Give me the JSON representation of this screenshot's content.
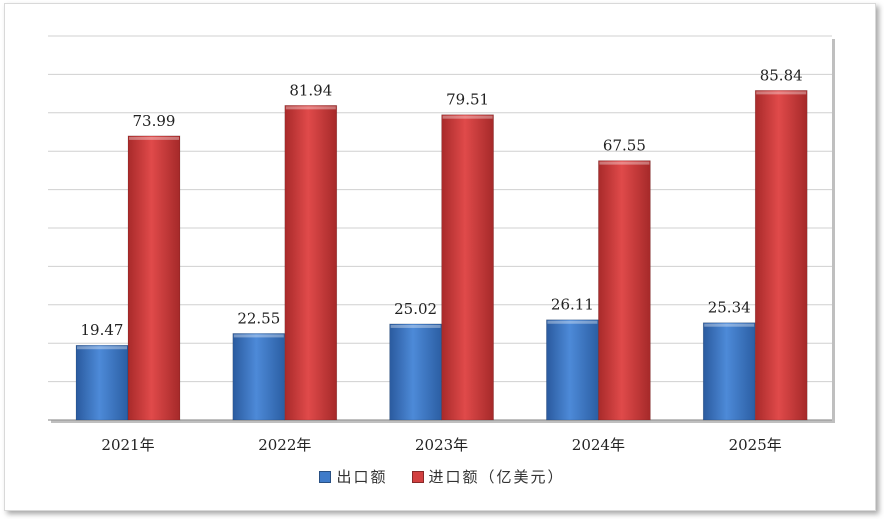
{
  "chart_data": {
    "type": "bar",
    "categories": [
      "2021年",
      "2022年",
      "2023年",
      "2024年",
      "2025年"
    ],
    "series": [
      {
        "name": "出口额",
        "values": [
          19.47,
          22.55,
          25.02,
          26.11,
          25.34
        ],
        "color": "#3f7bc9"
      },
      {
        "name": "进口额（亿美元）",
        "values": [
          73.99,
          81.94,
          79.51,
          67.55,
          85.84
        ],
        "color": "#d24040"
      }
    ],
    "title": "",
    "xlabel": "",
    "ylabel": "",
    "ylim": [
      0,
      100
    ],
    "grid": true,
    "legend_position": "bottom"
  }
}
